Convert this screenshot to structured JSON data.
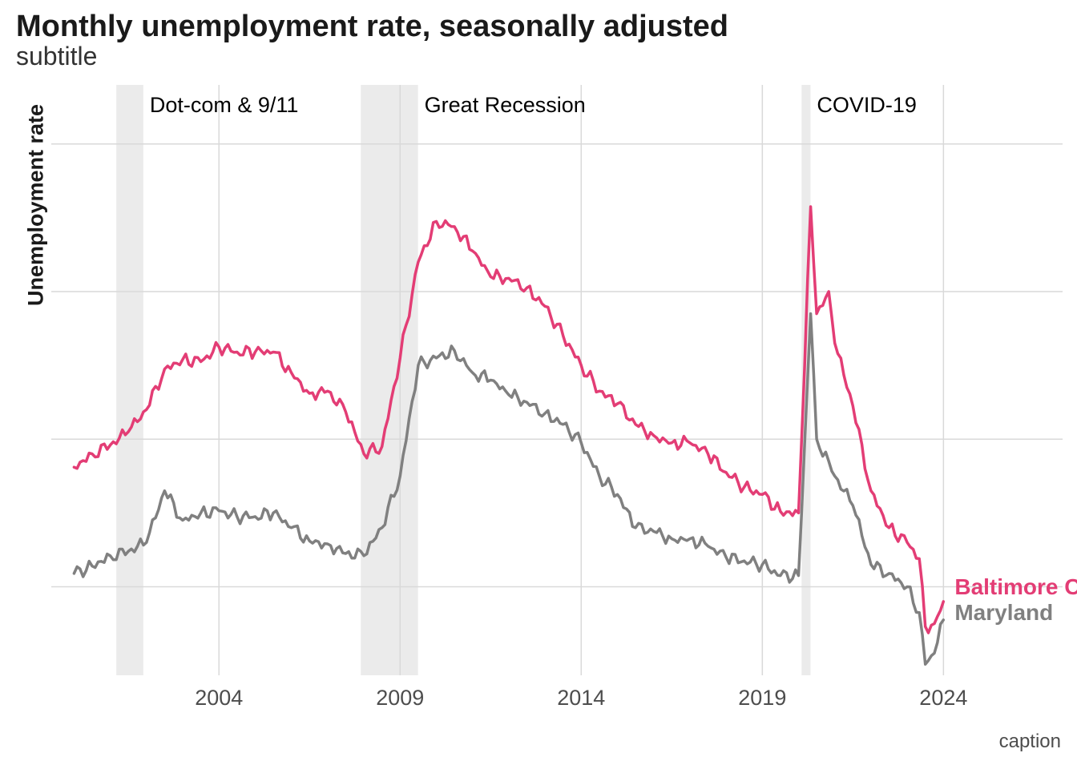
{
  "header": {
    "title": "Monthly unemployment rate, seasonally adjusted",
    "subtitle": "subtitle",
    "caption": "caption"
  },
  "chart_data": {
    "type": "line",
    "title": "Monthly unemployment rate, seasonally adjusted",
    "subtitle": "subtitle",
    "caption": "caption",
    "xlabel": "",
    "ylabel": "Unemployment rate",
    "x_ticks": [
      "2004",
      "2009",
      "2014",
      "2019",
      "2024"
    ],
    "xlim": [
      "1999-05-15",
      "2027-04-15"
    ],
    "ylim": [
      1.3,
      9.3
    ],
    "y_gridlines": [
      2.5,
      4.5,
      6.5,
      8.5
    ],
    "y_tick_labels_shown": false,
    "grid": true,
    "legend": "direct labels at line ends",
    "recessions": [
      {
        "label": "Dot-com & 9/11",
        "start": "2001-03-01",
        "end": "2001-11-30"
      },
      {
        "label": "Great Recession",
        "start": "2007-12-01",
        "end": "2009-06-30"
      },
      {
        "label": "COVID-19",
        "start": "2020-02-01",
        "end": "2020-04-30"
      }
    ],
    "series": [
      {
        "name": "Baltimore City",
        "color": "#e33d75",
        "points": [
          [
            "2000-01",
            4.12
          ],
          [
            "2000-07",
            4.3
          ],
          [
            "2001-01",
            4.42
          ],
          [
            "2001-07",
            4.6
          ],
          [
            "2002-01",
            4.9
          ],
          [
            "2002-07",
            5.45
          ],
          [
            "2003-01",
            5.58
          ],
          [
            "2003-07",
            5.55
          ],
          [
            "2004-01",
            5.75
          ],
          [
            "2004-07",
            5.68
          ],
          [
            "2005-01",
            5.68
          ],
          [
            "2005-07",
            5.68
          ],
          [
            "2006-01",
            5.4
          ],
          [
            "2006-07",
            5.12
          ],
          [
            "2007-01",
            5.15
          ],
          [
            "2007-07",
            4.87
          ],
          [
            "2008-01",
            4.3
          ],
          [
            "2008-07",
            4.4
          ],
          [
            "2009-01",
            5.6
          ],
          [
            "2009-07",
            6.9
          ],
          [
            "2010-01",
            7.45
          ],
          [
            "2010-07",
            7.38
          ],
          [
            "2011-01",
            7.05
          ],
          [
            "2011-07",
            6.7
          ],
          [
            "2012-01",
            6.68
          ],
          [
            "2012-07",
            6.55
          ],
          [
            "2013-01",
            6.3
          ],
          [
            "2013-07",
            5.9
          ],
          [
            "2014-01",
            5.5
          ],
          [
            "2014-07",
            5.15
          ],
          [
            "2015-01",
            4.98
          ],
          [
            "2015-07",
            4.7
          ],
          [
            "2016-01",
            4.55
          ],
          [
            "2016-07",
            4.45
          ],
          [
            "2017-01",
            4.45
          ],
          [
            "2017-07",
            4.3
          ],
          [
            "2018-01",
            4.05
          ],
          [
            "2018-07",
            3.85
          ],
          [
            "2019-01",
            3.75
          ],
          [
            "2019-07",
            3.52
          ],
          [
            "2020-01",
            3.5
          ],
          [
            "2020-05",
            7.65
          ],
          [
            "2020-07",
            6.2
          ],
          [
            "2020-11",
            6.5
          ],
          [
            "2021-01",
            5.8
          ],
          [
            "2021-07",
            4.95
          ],
          [
            "2022-01",
            3.8
          ],
          [
            "2022-07",
            3.3
          ],
          [
            "2023-01",
            3.1
          ],
          [
            "2023-05",
            2.88
          ],
          [
            "2023-07",
            1.96
          ],
          [
            "2023-10",
            2.0
          ],
          [
            "2024-01",
            2.3
          ]
        ]
      },
      {
        "name": "Maryland",
        "color": "#808080",
        "points": [
          [
            "2000-01",
            2.68
          ],
          [
            "2000-07",
            2.78
          ],
          [
            "2001-01",
            2.92
          ],
          [
            "2001-07",
            2.98
          ],
          [
            "2002-01",
            3.1
          ],
          [
            "2002-07",
            3.8
          ],
          [
            "2003-01",
            3.4
          ],
          [
            "2003-07",
            3.5
          ],
          [
            "2004-01",
            3.53
          ],
          [
            "2004-07",
            3.45
          ],
          [
            "2005-01",
            3.45
          ],
          [
            "2005-07",
            3.5
          ],
          [
            "2006-01",
            3.3
          ],
          [
            "2006-07",
            3.12
          ],
          [
            "2007-01",
            3.08
          ],
          [
            "2007-07",
            2.95
          ],
          [
            "2008-01",
            2.92
          ],
          [
            "2008-07",
            3.3
          ],
          [
            "2009-01",
            4.0
          ],
          [
            "2009-07",
            5.5
          ],
          [
            "2010-01",
            5.6
          ],
          [
            "2010-07",
            5.7
          ],
          [
            "2011-01",
            5.4
          ],
          [
            "2011-07",
            5.3
          ],
          [
            "2012-01",
            5.1
          ],
          [
            "2012-07",
            5.0
          ],
          [
            "2013-01",
            4.85
          ],
          [
            "2013-07",
            4.7
          ],
          [
            "2014-01",
            4.45
          ],
          [
            "2014-07",
            4.0
          ],
          [
            "2015-01",
            3.75
          ],
          [
            "2015-07",
            3.3
          ],
          [
            "2016-01",
            3.25
          ],
          [
            "2016-07",
            3.15
          ],
          [
            "2017-01",
            3.15
          ],
          [
            "2017-07",
            3.05
          ],
          [
            "2018-01",
            2.9
          ],
          [
            "2018-07",
            2.85
          ],
          [
            "2019-01",
            2.8
          ],
          [
            "2019-07",
            2.65
          ],
          [
            "2020-01",
            2.65
          ],
          [
            "2020-05",
            6.2
          ],
          [
            "2020-07",
            4.5
          ],
          [
            "2020-11",
            4.2
          ],
          [
            "2021-01",
            4.0
          ],
          [
            "2021-07",
            3.6
          ],
          [
            "2022-01",
            2.8
          ],
          [
            "2022-07",
            2.68
          ],
          [
            "2023-01",
            2.5
          ],
          [
            "2023-05",
            2.15
          ],
          [
            "2023-07",
            1.45
          ],
          [
            "2023-10",
            1.6
          ],
          [
            "2024-01",
            2.05
          ]
        ]
      }
    ]
  }
}
